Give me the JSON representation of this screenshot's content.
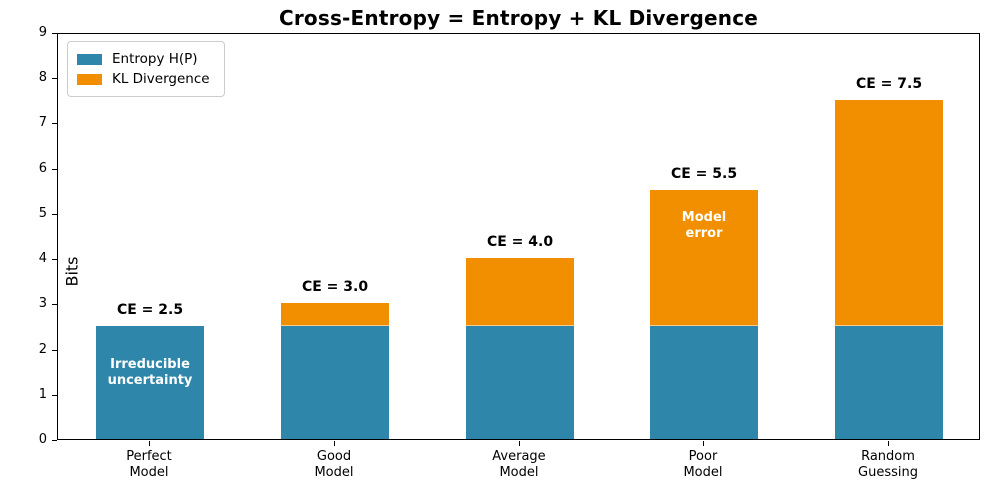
{
  "title": "Cross-Entropy = Entropy + KL Divergence",
  "chart_data": {
    "type": "bar",
    "stacked": true,
    "title": "Cross-Entropy = Entropy + KL Divergence",
    "categories": [
      "Perfect\nModel",
      "Good\nModel",
      "Average\nModel",
      "Poor\nModel",
      "Random\nGuessing"
    ],
    "series": [
      {
        "name": "Entropy H(P)",
        "color": "#2E86AB",
        "values": [
          2.5,
          2.5,
          2.5,
          2.5,
          2.5
        ]
      },
      {
        "name": "KL Divergence",
        "color": "#F18F01",
        "values": [
          0,
          0.5,
          1.5,
          3.0,
          5.0
        ]
      }
    ],
    "bar_totals": [
      2.5,
      3.0,
      4.0,
      5.5,
      7.5
    ],
    "bar_total_labels": [
      "CE = 2.5",
      "CE = 3.0",
      "CE = 4.0",
      "CE = 5.5",
      "CE = 7.5"
    ],
    "annotations": [
      {
        "bar": 0,
        "text": "Irreducible\nuncertainty",
        "y_value": 1.5,
        "color": "#ffffff"
      },
      {
        "bar": 3,
        "text": "Model\nerror",
        "y_value": 4.75,
        "color": "#ffffff"
      }
    ],
    "xlabel": "",
    "ylabel": "Bits",
    "ylim": [
      0,
      9
    ],
    "yticks": [
      0,
      1,
      2,
      3,
      4,
      5,
      6,
      7,
      8,
      9
    ],
    "grid": false,
    "legend": {
      "position": "upper-left"
    },
    "bar_width_fraction": 0.585
  }
}
